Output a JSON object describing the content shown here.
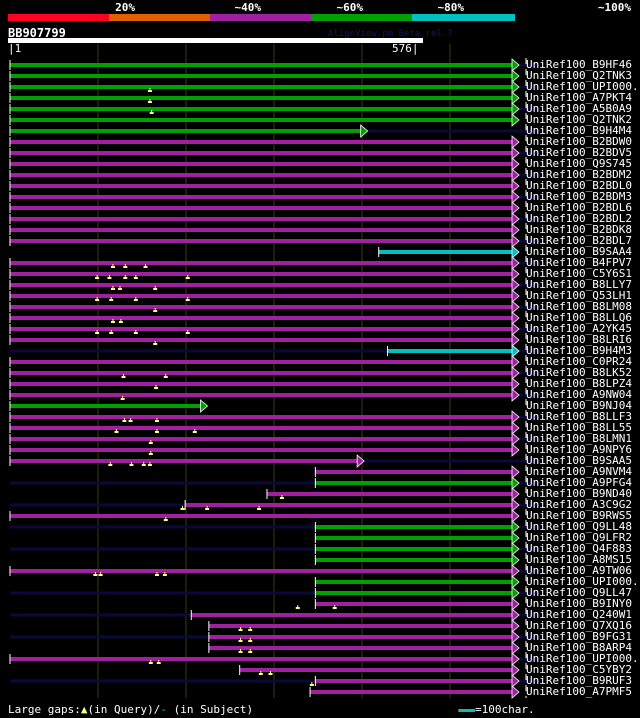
{
  "header": {
    "percent_labels": [
      "20%",
      "~40%",
      "~60%",
      "~80%",
      "~100%"
    ],
    "legend_colors": [
      "#ff0022",
      "#e06000",
      "#a020a0",
      "#00a000",
      "#00c0c0"
    ],
    "query_name": "BB907799",
    "credit": "AlignView.pm Beta rel.7",
    "query_start": "|1",
    "query_end": "576|",
    "query_length": 576
  },
  "colors": {
    "green": "#00a000",
    "purple": "#a020a0",
    "cyan": "#00c0c0",
    "navy": "#0a0a3a",
    "grid": "#3a3a10",
    "gap_marker": "#ffff80"
  },
  "hits": [
    {
      "name": "UniRef100_B9HF46",
      "color": "green",
      "start": 1,
      "end": 576,
      "arrow": true,
      "navy": true,
      "q": []
    },
    {
      "name": "UniRef100_Q2TNK3",
      "color": "green",
      "start": 1,
      "end": 576,
      "arrow": true,
      "navy": false,
      "q": []
    },
    {
      "name": "UniRef100_UPI000..",
      "color": "green",
      "start": 1,
      "end": 576,
      "arrow": true,
      "navy": true,
      "q": [
        160
      ]
    },
    {
      "name": "UniRef100_A7PKT4",
      "color": "green",
      "start": 1,
      "end": 576,
      "arrow": true,
      "navy": false,
      "q": [
        160
      ]
    },
    {
      "name": "UniRef100_A5B0A9",
      "color": "green",
      "start": 1,
      "end": 576,
      "arrow": true,
      "navy": true,
      "q": [
        162
      ]
    },
    {
      "name": "UniRef100_Q2TNK2",
      "color": "green",
      "start": 1,
      "end": 576,
      "arrow": true,
      "navy": false,
      "q": []
    },
    {
      "name": "UniRef100_B9H4M4",
      "color": "green",
      "start": 1,
      "end": 404,
      "arrow": true,
      "navy": true,
      "q": []
    },
    {
      "name": "UniRef100_B2BDW0",
      "color": "purple",
      "start": 1,
      "end": 576,
      "arrow": true,
      "navy": false,
      "q": []
    },
    {
      "name": "UniRef100_B2BDV5",
      "color": "purple",
      "start": 1,
      "end": 576,
      "arrow": true,
      "navy": true,
      "q": []
    },
    {
      "name": "UniRef100_Q9S745",
      "color": "purple",
      "start": 1,
      "end": 576,
      "arrow": true,
      "navy": false,
      "q": []
    },
    {
      "name": "UniRef100_B2BDM2",
      "color": "purple",
      "start": 1,
      "end": 576,
      "arrow": true,
      "navy": true,
      "q": []
    },
    {
      "name": "UniRef100_B2BDL0",
      "color": "purple",
      "start": 1,
      "end": 576,
      "arrow": true,
      "navy": false,
      "q": []
    },
    {
      "name": "UniRef100_B2BDM3",
      "color": "purple",
      "start": 1,
      "end": 576,
      "arrow": true,
      "navy": true,
      "q": []
    },
    {
      "name": "UniRef100_B2BDL6",
      "color": "purple",
      "start": 1,
      "end": 576,
      "arrow": true,
      "navy": false,
      "q": []
    },
    {
      "name": "UniRef100_B2BDL2",
      "color": "purple",
      "start": 1,
      "end": 576,
      "arrow": true,
      "navy": true,
      "q": []
    },
    {
      "name": "UniRef100_B2BDK8",
      "color": "purple",
      "start": 1,
      "end": 576,
      "arrow": true,
      "navy": false,
      "q": []
    },
    {
      "name": "UniRef100_B2BDL7",
      "color": "purple",
      "start": 1,
      "end": 576,
      "arrow": true,
      "navy": true,
      "q": []
    },
    {
      "name": "UniRef100_B9SAA4",
      "color": "cyan",
      "start": 420,
      "end": 576,
      "arrow": true,
      "navy": false,
      "q": []
    },
    {
      "name": "UniRef100_B4FPV7",
      "color": "purple",
      "start": 1,
      "end": 576,
      "arrow": true,
      "navy": true,
      "q": [
        118,
        132,
        155
      ]
    },
    {
      "name": "UniRef100_C5Y6S1",
      "color": "purple",
      "start": 1,
      "end": 576,
      "arrow": true,
      "navy": false,
      "q": [
        100,
        114,
        132,
        144,
        203
      ]
    },
    {
      "name": "UniRef100_B8LLY7",
      "color": "purple",
      "start": 1,
      "end": 576,
      "arrow": true,
      "navy": true,
      "q": [
        118,
        126,
        166
      ]
    },
    {
      "name": "UniRef100_Q53LH1",
      "color": "purple",
      "start": 1,
      "end": 576,
      "arrow": true,
      "navy": false,
      "q": [
        100,
        116,
        144,
        203
      ]
    },
    {
      "name": "UniRef100_B8LM08",
      "color": "purple",
      "start": 1,
      "end": 576,
      "arrow": true,
      "navy": true,
      "q": [
        166
      ]
    },
    {
      "name": "UniRef100_B8LLQ6",
      "color": "purple",
      "start": 1,
      "end": 576,
      "arrow": true,
      "navy": false,
      "q": [
        118,
        127
      ]
    },
    {
      "name": "UniRef100_A2YK45",
      "color": "purple",
      "start": 1,
      "end": 576,
      "arrow": true,
      "navy": true,
      "q": [
        100,
        116,
        144,
        203
      ]
    },
    {
      "name": "UniRef100_B8LRI6",
      "color": "purple",
      "start": 1,
      "end": 576,
      "arrow": true,
      "navy": false,
      "q": [
        166
      ]
    },
    {
      "name": "UniRef100_B9H4M3",
      "color": "cyan",
      "start": 430,
      "end": 576,
      "arrow": true,
      "navy": true,
      "q": []
    },
    {
      "name": "UniRef100_C0PR24",
      "color": "purple",
      "start": 1,
      "end": 576,
      "arrow": true,
      "navy": false,
      "q": []
    },
    {
      "name": "UniRef100_B8LK52",
      "color": "purple",
      "start": 1,
      "end": 576,
      "arrow": true,
      "navy": true,
      "q": [
        130,
        178
      ]
    },
    {
      "name": "UniRef100_B8LPZ4",
      "color": "purple",
      "start": 1,
      "end": 576,
      "arrow": true,
      "navy": false,
      "q": [
        167
      ]
    },
    {
      "name": "UniRef100_A9NW04",
      "color": "purple",
      "start": 1,
      "end": 576,
      "arrow": true,
      "navy": true,
      "q": [
        129
      ]
    },
    {
      "name": "UniRef100_B9NJ04",
      "color": "green",
      "start": 1,
      "end": 222,
      "arrow": true,
      "navy": false,
      "q": []
    },
    {
      "name": "UniRef100_B8LLF3",
      "color": "purple",
      "start": 1,
      "end": 576,
      "arrow": true,
      "navy": true,
      "q": [
        131,
        138,
        168
      ]
    },
    {
      "name": "UniRef100_B8LL55",
      "color": "purple",
      "start": 1,
      "end": 576,
      "arrow": true,
      "navy": false,
      "q": [
        122,
        168,
        211
      ]
    },
    {
      "name": "UniRef100_B8LMN1",
      "color": "purple",
      "start": 1,
      "end": 576,
      "arrow": true,
      "navy": true,
      "q": [
        161
      ]
    },
    {
      "name": "UniRef100_A9NPY6",
      "color": "purple",
      "start": 1,
      "end": 576,
      "arrow": true,
      "navy": false,
      "q": [
        161
      ]
    },
    {
      "name": "UniRef100_B9SAA5",
      "color": "purple",
      "start": 1,
      "end": 400,
      "arrow": true,
      "navy": true,
      "q": [
        115,
        139,
        153,
        160
      ]
    },
    {
      "name": "UniRef100_A9NVM4",
      "color": "purple",
      "start": 348,
      "end": 576,
      "arrow": true,
      "navy": false,
      "q": []
    },
    {
      "name": "UniRef100_A9PFG4",
      "color": "green",
      "start": 348,
      "end": 576,
      "arrow": true,
      "navy": true,
      "q": []
    },
    {
      "name": "UniRef100_B9ND40",
      "color": "purple",
      "start": 293,
      "end": 576,
      "arrow": true,
      "navy": false,
      "q": [
        310
      ]
    },
    {
      "name": "UniRef100_A3C9G2",
      "color": "purple",
      "start": 200,
      "end": 576,
      "arrow": true,
      "navy": true,
      "q": [
        197,
        225,
        284
      ]
    },
    {
      "name": "UniRef100_B9RWS5",
      "color": "purple",
      "start": 1,
      "end": 576,
      "arrow": true,
      "navy": false,
      "q": [
        178
      ]
    },
    {
      "name": "UniRef100_Q9LL48",
      "color": "green",
      "start": 348,
      "end": 576,
      "arrow": true,
      "navy": true,
      "q": []
    },
    {
      "name": "UniRef100_Q9LFR2",
      "color": "green",
      "start": 348,
      "end": 576,
      "arrow": true,
      "navy": false,
      "q": []
    },
    {
      "name": "UniRef100_Q4F883",
      "color": "green",
      "start": 348,
      "end": 576,
      "arrow": true,
      "navy": true,
      "q": []
    },
    {
      "name": "UniRef100_A8MS15",
      "color": "green",
      "start": 348,
      "end": 576,
      "arrow": true,
      "navy": false,
      "q": []
    },
    {
      "name": "UniRef100_A9TW06",
      "color": "purple",
      "start": 1,
      "end": 576,
      "arrow": true,
      "navy": true,
      "q": [
        98,
        104,
        168,
        177
      ]
    },
    {
      "name": "UniRef100_UPI000..",
      "color": "green",
      "start": 348,
      "end": 576,
      "arrow": true,
      "navy": false,
      "q": []
    },
    {
      "name": "UniRef100_Q9LL47",
      "color": "green",
      "start": 348,
      "end": 576,
      "arrow": true,
      "navy": true,
      "q": []
    },
    {
      "name": "UniRef100_B9INY0",
      "color": "purple",
      "start": 348,
      "end": 576,
      "arrow": true,
      "navy": false,
      "q": [
        328,
        370
      ]
    },
    {
      "name": "UniRef100_Q240W1",
      "color": "purple",
      "start": 207,
      "end": 576,
      "arrow": true,
      "navy": true,
      "q": []
    },
    {
      "name": "UniRef100_Q7XQ16",
      "color": "purple",
      "start": 227,
      "end": 576,
      "arrow": true,
      "navy": false,
      "q": [
        263,
        274
      ]
    },
    {
      "name": "UniRef100_B9FG31",
      "color": "purple",
      "start": 227,
      "end": 576,
      "arrow": true,
      "navy": true,
      "q": [
        263,
        274
      ]
    },
    {
      "name": "UniRef100_B8ARP4",
      "color": "purple",
      "start": 227,
      "end": 576,
      "arrow": true,
      "navy": false,
      "q": [
        263,
        274
      ]
    },
    {
      "name": "UniRef100_UPI000..",
      "color": "purple",
      "start": 1,
      "end": 576,
      "arrow": true,
      "navy": true,
      "q": [
        161,
        170
      ]
    },
    {
      "name": "UniRef100_C5YBY2",
      "color": "purple",
      "start": 262,
      "end": 576,
      "arrow": true,
      "navy": false,
      "q": [
        286,
        297
      ]
    },
    {
      "name": "UniRef100_B9RUF3",
      "color": "purple",
      "start": 348,
      "end": 576,
      "arrow": true,
      "navy": true,
      "q": [
        344
      ]
    },
    {
      "name": "UniRef100_A7PMF5",
      "color": "purple",
      "start": 342,
      "end": 576,
      "arrow": true,
      "navy": false,
      "q": []
    }
  ],
  "footer": {
    "gaps_prefix": "Large gaps:",
    "gaps_query": "(in Query)/",
    "gaps_subject": "(in Subject)",
    "scale_text": "=100char."
  }
}
